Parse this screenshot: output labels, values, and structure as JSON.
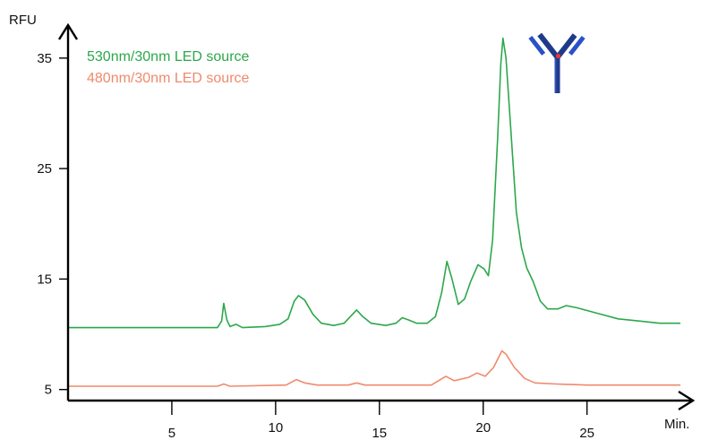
{
  "chart_data": {
    "type": "line",
    "xlabel": "Min.",
    "ylabel": "RFU",
    "xlim": [
      0,
      29.5
    ],
    "ylim": [
      4,
      37.5
    ],
    "x_ticks": [
      5,
      10,
      15,
      20,
      25
    ],
    "y_ticks": [
      5,
      15,
      25,
      35
    ],
    "grid": false,
    "legend_position": "top-left",
    "icon": "antibody-icon",
    "series": [
      {
        "name": "530nm/30nm LED source",
        "color": "#2ca84b",
        "points": [
          [
            0,
            10.6
          ],
          [
            2,
            10.6
          ],
          [
            4,
            10.6
          ],
          [
            6,
            10.6
          ],
          [
            7.2,
            10.6
          ],
          [
            7.4,
            11.2
          ],
          [
            7.5,
            12.8
          ],
          [
            7.65,
            11.3
          ],
          [
            7.8,
            10.7
          ],
          [
            8.1,
            10.9
          ],
          [
            8.4,
            10.6
          ],
          [
            9.5,
            10.7
          ],
          [
            10.2,
            10.9
          ],
          [
            10.6,
            11.4
          ],
          [
            10.9,
            13.0
          ],
          [
            11.1,
            13.5
          ],
          [
            11.4,
            13.1
          ],
          [
            11.8,
            11.8
          ],
          [
            12.2,
            11.0
          ],
          [
            12.8,
            10.8
          ],
          [
            13.3,
            11.0
          ],
          [
            13.6,
            11.6
          ],
          [
            13.9,
            12.2
          ],
          [
            14.2,
            11.6
          ],
          [
            14.6,
            11.0
          ],
          [
            15.3,
            10.8
          ],
          [
            15.8,
            11.0
          ],
          [
            16.1,
            11.5
          ],
          [
            16.4,
            11.3
          ],
          [
            16.8,
            11.0
          ],
          [
            17.3,
            11.0
          ],
          [
            17.7,
            11.6
          ],
          [
            18.0,
            13.8
          ],
          [
            18.25,
            16.6
          ],
          [
            18.5,
            15.0
          ],
          [
            18.8,
            12.7
          ],
          [
            19.1,
            13.2
          ],
          [
            19.4,
            14.8
          ],
          [
            19.75,
            16.3
          ],
          [
            20.05,
            15.9
          ],
          [
            20.25,
            15.3
          ],
          [
            20.45,
            18.5
          ],
          [
            20.7,
            28.0
          ],
          [
            20.85,
            34.5
          ],
          [
            20.95,
            36.8
          ],
          [
            21.1,
            35.0
          ],
          [
            21.35,
            28.0
          ],
          [
            21.6,
            21.0
          ],
          [
            21.85,
            17.8
          ],
          [
            22.1,
            16.0
          ],
          [
            22.4,
            14.8
          ],
          [
            22.75,
            13.0
          ],
          [
            23.1,
            12.3
          ],
          [
            23.6,
            12.3
          ],
          [
            24.0,
            12.6
          ],
          [
            24.5,
            12.4
          ],
          [
            25.5,
            11.9
          ],
          [
            26.5,
            11.4
          ],
          [
            27.5,
            11.2
          ],
          [
            28.5,
            11.0
          ],
          [
            29.5,
            11.0
          ]
        ]
      },
      {
        "name": "480nm/30nm LED source",
        "color": "#f08a6c",
        "points": [
          [
            0,
            5.3
          ],
          [
            4,
            5.3
          ],
          [
            7.2,
            5.3
          ],
          [
            7.5,
            5.5
          ],
          [
            7.8,
            5.3
          ],
          [
            10.5,
            5.4
          ],
          [
            11.0,
            5.9
          ],
          [
            11.4,
            5.6
          ],
          [
            12.0,
            5.4
          ],
          [
            13.5,
            5.4
          ],
          [
            13.9,
            5.6
          ],
          [
            14.3,
            5.4
          ],
          [
            16.0,
            5.4
          ],
          [
            17.5,
            5.4
          ],
          [
            18.2,
            6.2
          ],
          [
            18.6,
            5.8
          ],
          [
            19.3,
            6.1
          ],
          [
            19.7,
            6.5
          ],
          [
            20.1,
            6.2
          ],
          [
            20.5,
            7.0
          ],
          [
            20.9,
            8.5
          ],
          [
            21.1,
            8.2
          ],
          [
            21.5,
            7.0
          ],
          [
            22.0,
            6.0
          ],
          [
            22.5,
            5.6
          ],
          [
            23.5,
            5.5
          ],
          [
            25.0,
            5.4
          ],
          [
            29.5,
            5.4
          ]
        ]
      }
    ]
  }
}
